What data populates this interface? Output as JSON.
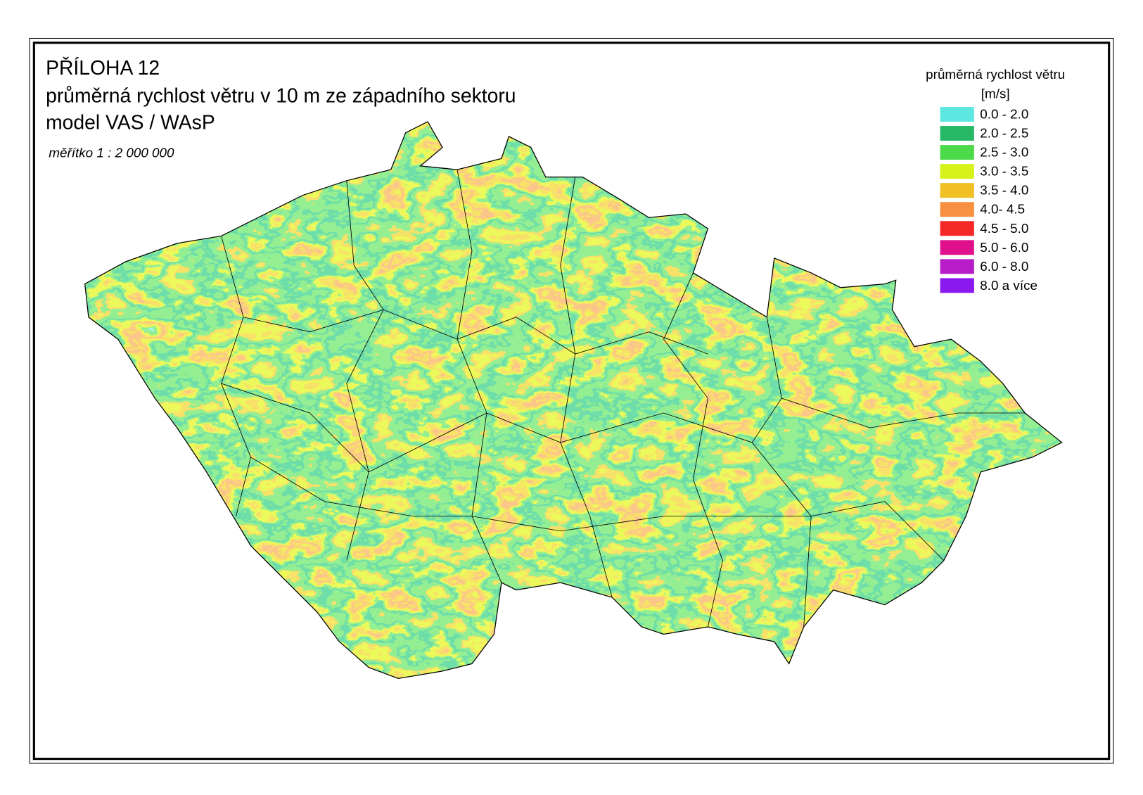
{
  "header": {
    "lines": [
      "PŘÍLOHA 12",
      "průměrná rychlost větru v 10 m ze západního sektoru",
      "model VAS / WAsP"
    ]
  },
  "scale": "měřítko 1 : 2 000 000",
  "legend": {
    "title": "průměrná rychlost větru",
    "unit": "[m/s]",
    "items": [
      {
        "label": "0.0 - 2.0",
        "color": "#5ce8e0"
      },
      {
        "label": "2.0 - 2.5",
        "color": "#27b866"
      },
      {
        "label": "2.5 - 3.0",
        "color": "#4cd94a"
      },
      {
        "label": "3.0 - 3.5",
        "color": "#d6f21a"
      },
      {
        "label": "3.5 - 4.0",
        "color": "#f0c024"
      },
      {
        "label": "4.0- 4.5",
        "color": "#f79040"
      },
      {
        "label": "4.5 - 5.0",
        "color": "#f52828"
      },
      {
        "label": "5.0 - 6.0",
        "color": "#e0108c"
      },
      {
        "label": "6.0 - 8.0",
        "color": "#b81cc8"
      },
      {
        "label": "8.0 a více",
        "color": "#8c18f0"
      }
    ]
  }
}
